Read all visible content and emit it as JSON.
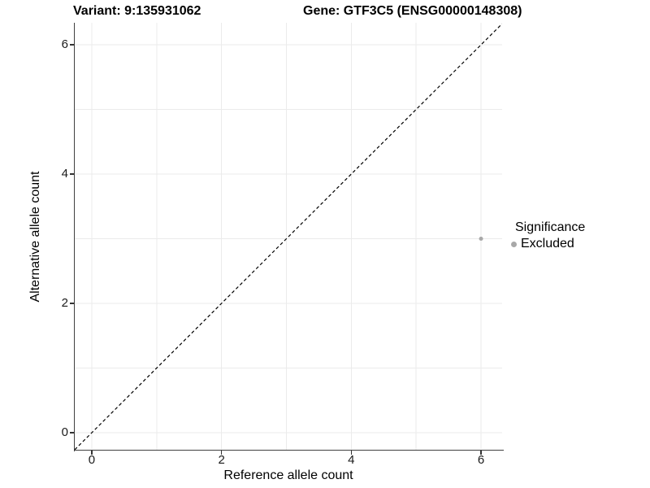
{
  "chart_data": {
    "type": "scatter",
    "titles": {
      "left": "Variant: 9:135931062",
      "right": "Gene: GTF3C5 (ENSG00000148308)"
    },
    "xlabel": "Reference allele count",
    "ylabel": "Alternative allele count",
    "xlim": [
      -0.2625,
      6.325
    ],
    "ylim": [
      -0.264,
      6.34
    ],
    "xticks": [
      {
        "value": 0,
        "label": "0"
      },
      {
        "value": 2,
        "label": "2"
      },
      {
        "value": 4,
        "label": "4"
      },
      {
        "value": 6,
        "label": "6"
      }
    ],
    "yticks": [
      {
        "value": 0,
        "label": "0"
      },
      {
        "value": 2,
        "label": "2"
      },
      {
        "value": 4,
        "label": "4"
      },
      {
        "value": 6,
        "label": "6"
      }
    ],
    "grid": {
      "interval": 1,
      "color": "#ebebeb",
      "on": true
    },
    "reference_line": {
      "type": "identity",
      "slope": 1,
      "intercept": 0,
      "style": "dashed",
      "color": "#000000"
    },
    "points": [
      {
        "x": 6,
        "y": 3,
        "series": "Excluded",
        "color": "#a8a8a8",
        "radius": 2.5
      }
    ],
    "legend": {
      "position": "right",
      "title": "Significance",
      "items": [
        {
          "label": "Excluded",
          "color": "#a8a8a8"
        }
      ]
    },
    "colors": {
      "axis_line": "#404040",
      "tick_mark": "#333333",
      "text": "#000000",
      "background": "#ffffff"
    }
  }
}
